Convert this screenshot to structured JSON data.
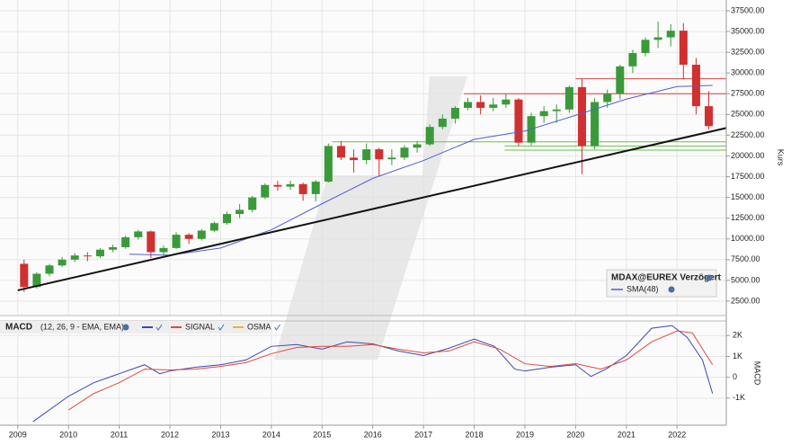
{
  "chart_data": [
    {
      "type": "candlestick",
      "ylabel": "Kurs",
      "legend_title": "MDAX@EUREX Verzögert",
      "xlim": [
        2008.65,
        2022.97
      ],
      "ylim": [
        760,
        38800
      ],
      "yticks": [
        {
          "value": 2500,
          "label": "2500.00"
        },
        {
          "value": 5000,
          "label": "5000.00"
        },
        {
          "value": 7500,
          "label": "7500.00"
        },
        {
          "value": 10000,
          "label": "10000.00"
        },
        {
          "value": 12500,
          "label": "12500.00"
        },
        {
          "value": 15000,
          "label": "15000.00"
        },
        {
          "value": 17500,
          "label": "17500.00"
        },
        {
          "value": 20000,
          "label": "20000.00"
        },
        {
          "value": 22500,
          "label": "22500.00"
        },
        {
          "value": 25000,
          "label": "25000.00"
        },
        {
          "value": 27500,
          "label": "27500.00"
        },
        {
          "value": 30000,
          "label": "30000.00"
        },
        {
          "value": 32500,
          "label": "32500.00"
        },
        {
          "value": 35000,
          "label": "35000.00"
        },
        {
          "value": 37500,
          "label": "37500.00"
        }
      ],
      "up_color": "#3a9a3a",
      "down_color": "#d03030",
      "x": [
        2009.125,
        2009.375,
        2009.625,
        2009.875,
        2010.125,
        2010.375,
        2010.625,
        2010.875,
        2011.125,
        2011.375,
        2011.625,
        2011.875,
        2012.125,
        2012.375,
        2012.625,
        2012.875,
        2013.125,
        2013.375,
        2013.625,
        2013.875,
        2014.125,
        2014.375,
        2014.625,
        2014.875,
        2015.125,
        2015.375,
        2015.625,
        2015.875,
        2016.125,
        2016.375,
        2016.625,
        2016.875,
        2017.125,
        2017.375,
        2017.625,
        2017.875,
        2018.125,
        2018.375,
        2018.625,
        2018.875,
        2019.125,
        2019.375,
        2019.625,
        2019.875,
        2020.125,
        2020.375,
        2020.625,
        2020.875,
        2021.125,
        2021.375,
        2021.625,
        2021.875,
        2022.125,
        2022.375,
        2022.625
      ],
      "open": [
        7000,
        4200,
        5800,
        6800,
        7500,
        8000,
        7900,
        8700,
        9000,
        10200,
        10900,
        8400,
        8900,
        10500,
        10000,
        11000,
        11900,
        13000,
        13500,
        15000,
        16500,
        16300,
        16600,
        15400,
        16900,
        21200,
        19800,
        19500,
        20800,
        19600,
        19800,
        21000,
        21400,
        23500,
        24500,
        25800,
        26500,
        25800,
        26200,
        26800,
        21600,
        24800,
        25400,
        25600,
        28300,
        21200,
        26500,
        27500,
        30800,
        32400,
        34000,
        34300,
        35100,
        31000,
        26000
      ],
      "high": [
        7500,
        6000,
        7000,
        7800,
        8300,
        8400,
        8900,
        9300,
        10400,
        11100,
        11000,
        9200,
        10800,
        10700,
        11200,
        12100,
        13300,
        14200,
        15200,
        16700,
        17000,
        17000,
        16800,
        17100,
        21500,
        21800,
        20800,
        21500,
        21000,
        20800,
        21300,
        21800,
        23800,
        25000,
        26000,
        27000,
        27300,
        27000,
        27500,
        27000,
        25200,
        26000,
        26200,
        28500,
        29300,
        27000,
        28000,
        31000,
        32800,
        34300,
        36200,
        35900,
        36000,
        31800,
        27800
      ],
      "low": [
        3600,
        4000,
        5500,
        6600,
        7200,
        7300,
        7700,
        8400,
        8800,
        9900,
        7700,
        8000,
        8800,
        9400,
        9800,
        10800,
        11700,
        12500,
        13200,
        14800,
        15800,
        15900,
        14600,
        14500,
        16800,
        19500,
        18000,
        19000,
        17600,
        18900,
        19500,
        20400,
        21200,
        23200,
        23900,
        25500,
        25000,
        25400,
        25800,
        21200,
        21300,
        24000,
        24000,
        25200,
        17800,
        20800,
        25800,
        26800,
        30000,
        32000,
        33000,
        33200,
        29200,
        25000,
        23200
      ],
      "close": [
        4200,
        5800,
        6800,
        7500,
        8000,
        7900,
        8700,
        9000,
        10200,
        10900,
        8400,
        8900,
        10500,
        10000,
        11000,
        11900,
        13000,
        13500,
        15000,
        16500,
        16300,
        16600,
        15400,
        16900,
        21200,
        19800,
        19500,
        20800,
        19600,
        19800,
        21000,
        21400,
        23500,
        24500,
        25800,
        26500,
        25800,
        26200,
        26800,
        21600,
        24800,
        25400,
        25600,
        28300,
        21200,
        26500,
        27500,
        30800,
        32400,
        34000,
        34300,
        35100,
        31000,
        26000,
        23600
      ],
      "series": [
        {
          "name": "SMA(48)",
          "color": "#4f5fd0",
          "x": [
            2011.2,
            2012,
            2013,
            2014,
            2015,
            2016,
            2017,
            2018,
            2019,
            2020,
            2021,
            2022,
            2022.7
          ],
          "values": [
            8150,
            8040,
            8900,
            11100,
            14240,
            17300,
            19450,
            22000,
            23000,
            24900,
            26850,
            28370,
            28500
          ]
        }
      ],
      "trendline": {
        "color": "#111111",
        "x": [
          2009,
          2022.97
        ],
        "values": [
          3800,
          23370
        ]
      },
      "levels": [
        {
          "value": 29300,
          "x": [
            2020,
            2022.97
          ],
          "color": "#d04040"
        },
        {
          "value": 27500,
          "x": [
            2017.8,
            2022.97
          ],
          "color": "#d04040"
        },
        {
          "value": 21700,
          "x": [
            2015.2,
            2022.97
          ],
          "color": "#6cc04a"
        },
        {
          "value": 21200,
          "x": [
            2018.6,
            2022.97
          ],
          "color": "#6cc04a"
        },
        {
          "value": 20700,
          "x": [
            2018.6,
            2022.97
          ],
          "color": "#6cc04a"
        }
      ]
    },
    {
      "type": "line",
      "title": "MACD",
      "subtitle": "(12, 26, 9 - EMA, EMA)",
      "ylabel": "MACD",
      "xlim": [
        2008.65,
        2022.97
      ],
      "xticks": [
        2009,
        2010,
        2011,
        2012,
        2013,
        2014,
        2015,
        2016,
        2017,
        2018,
        2019,
        2020,
        2021,
        2022
      ],
      "ylim": [
        -2300,
        2700
      ],
      "yticks": [
        {
          "value": -1000,
          "label": "-1K"
        },
        0,
        {
          "value": 1000,
          "label": "1K"
        },
        {
          "value": 2000,
          "label": "2K"
        }
      ],
      "series": [
        {
          "color": "#3a48b0",
          "x": [
            2009.3,
            2010,
            2010.5,
            2011,
            2011.5,
            2011.8,
            2012,
            2012.5,
            2013,
            2013.5,
            2014,
            2014.5,
            2015,
            2015.5,
            2016,
            2016.5,
            2017,
            2017.5,
            2018,
            2018.4,
            2018.8,
            2019,
            2019.5,
            2020,
            2020.3,
            2020.6,
            2021,
            2021.5,
            2021.9,
            2022.2,
            2022.5,
            2022.7
          ],
          "values": [
            -2130,
            -910,
            -260,
            170,
            600,
            170,
            300,
            480,
            600,
            830,
            1480,
            1570,
            1350,
            1700,
            1600,
            1260,
            1040,
            1390,
            1830,
            1480,
            390,
            300,
            480,
            600,
            40,
            390,
            1040,
            2350,
            2480,
            1910,
            830,
            -780
          ]
        },
        {
          "name": "SIGNAL",
          "color": "#e04a3a",
          "x": [
            2010,
            2010.5,
            2011,
            2011.5,
            2012,
            2012.5,
            2013,
            2013.5,
            2014,
            2014.5,
            2015,
            2015.5,
            2016,
            2016.5,
            2017,
            2017.5,
            2018,
            2018.5,
            2019,
            2019.5,
            2020,
            2020.5,
            2021,
            2021.5,
            2022,
            2022.3,
            2022.7
          ],
          "values": [
            -1570,
            -780,
            -260,
            390,
            350,
            390,
            520,
            700,
            1130,
            1430,
            1480,
            1480,
            1570,
            1350,
            1170,
            1260,
            1700,
            1350,
            650,
            520,
            650,
            390,
            830,
            1700,
            2220,
            2130,
            600
          ]
        },
        {
          "name": "OSMA",
          "color": "#f0b030"
        }
      ]
    }
  ]
}
